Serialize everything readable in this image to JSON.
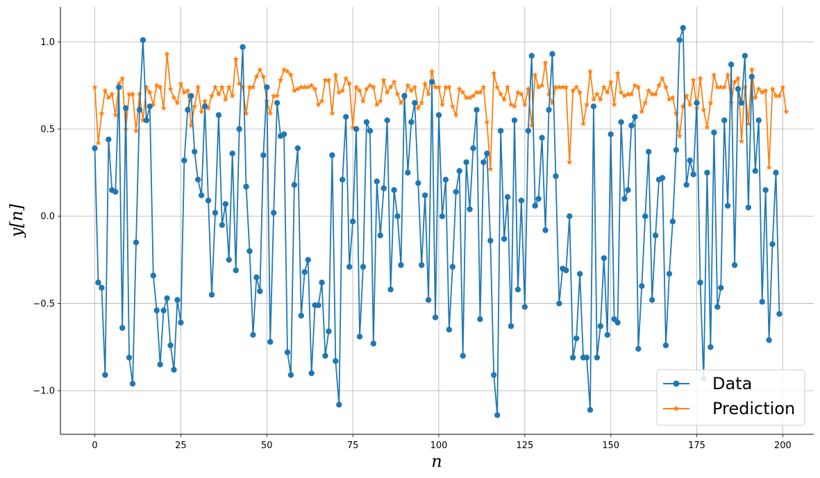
{
  "chart_data": {
    "type": "line",
    "xlabel": "n",
    "ylabel": "y[n]",
    "xlim": [
      -10,
      209
    ],
    "ylim": [
      -1.25,
      1.2
    ],
    "xticks": [
      0,
      25,
      50,
      75,
      100,
      125,
      150,
      175,
      200
    ],
    "yticks": [
      -1.0,
      -0.5,
      0.0,
      0.5,
      1.0
    ],
    "xtick_labels": [
      "0",
      "25",
      "50",
      "75",
      "100",
      "125",
      "150",
      "175",
      "200"
    ],
    "ytick_labels": [
      "−1.0",
      "−0.5",
      "0.0",
      "0.5",
      "1.0"
    ],
    "grid": true,
    "legend_position": "bottom-right",
    "colors": {
      "data": "#1f77b4",
      "prediction": "#ff7f0e",
      "grid": "#b0b0b0",
      "axis": "#000000"
    },
    "series": [
      {
        "name": "Data",
        "marker": "circle",
        "values": [
          0.39,
          -0.38,
          -0.41,
          -0.91,
          0.44,
          0.15,
          0.14,
          0.74,
          -0.64,
          0.62,
          -0.81,
          -0.96,
          -0.15,
          0.61,
          1.01,
          0.55,
          0.63,
          -0.34,
          -0.54,
          -0.85,
          -0.54,
          -0.47,
          -0.74,
          -0.88,
          -0.48,
          -0.61,
          0.32,
          0.61,
          0.69,
          0.37,
          0.21,
          0.12,
          0.63,
          0.09,
          -0.45,
          0.02,
          0.58,
          -0.05,
          0.07,
          -0.25,
          0.36,
          -0.31,
          0.5,
          0.97,
          0.17,
          -0.2,
          -0.68,
          -0.35,
          -0.43,
          0.35,
          0.74,
          -0.72,
          0.02,
          0.65,
          0.46,
          0.47,
          -0.78,
          -0.91,
          0.18,
          0.39,
          -0.57,
          -0.32,
          -0.25,
          -0.9,
          -0.51,
          -0.51,
          -0.38,
          -0.8,
          -0.66,
          0.35,
          -0.83,
          -1.08,
          0.21,
          0.57,
          -0.29,
          -0.03,
          0.5,
          -0.69,
          -0.29,
          0.54,
          0.49,
          -0.73,
          0.2,
          -0.11,
          0.16,
          0.55,
          -0.42,
          0.15,
          0.0,
          -0.28,
          0.69,
          0.25,
          0.54,
          0.65,
          0.19,
          -0.28,
          0.12,
          -0.48,
          0.77,
          -0.58,
          0.58,
          0.0,
          0.21,
          -0.65,
          -0.29,
          0.14,
          0.26,
          -0.8,
          0.31,
          0.04,
          0.39,
          0.61,
          -0.59,
          0.31,
          0.36,
          -0.14,
          -0.91,
          -1.14,
          0.49,
          -0.13,
          0.11,
          -0.63,
          0.55,
          -0.42,
          0.09,
          -0.52,
          0.49,
          0.92,
          0.06,
          0.1,
          0.45,
          -0.08,
          0.61,
          0.93,
          0.23,
          -0.5,
          -0.3,
          -0.31,
          0.0,
          -0.81,
          -0.7,
          -0.33,
          -0.81,
          -0.81,
          -1.11,
          0.63,
          -0.81,
          -0.63,
          -0.24,
          -0.68,
          0.47,
          -0.59,
          -0.61,
          0.54,
          0.1,
          0.15,
          0.52,
          0.57,
          -0.76,
          -0.4,
          0.0,
          0.37,
          -0.48,
          -0.11,
          0.21,
          0.22,
          -0.74,
          -0.33,
          -0.03,
          0.38,
          1.01,
          1.08,
          0.18,
          0.32,
          0.24,
          0.65,
          -0.38,
          -0.93,
          0.25,
          -0.75,
          0.48,
          -0.52,
          -0.41,
          0.55,
          0.06,
          0.87,
          -0.28,
          0.73,
          0.65,
          0.92,
          0.05,
          0.8,
          0.26,
          0.55,
          -0.49,
          0.15,
          -0.71,
          -0.16,
          0.25,
          -0.56
        ]
      },
      {
        "name": "Prediction",
        "marker": "star",
        "values": [
          0.74,
          0.42,
          0.59,
          0.72,
          0.68,
          0.7,
          0.58,
          0.76,
          0.79,
          0.5,
          0.7,
          0.7,
          0.49,
          0.7,
          0.55,
          0.74,
          0.71,
          0.64,
          0.75,
          0.74,
          0.62,
          0.93,
          0.73,
          0.68,
          0.65,
          0.76,
          0.71,
          0.72,
          0.52,
          0.63,
          0.74,
          0.6,
          0.66,
          0.62,
          0.69,
          0.74,
          0.7,
          0.74,
          0.67,
          0.74,
          0.69,
          0.9,
          0.76,
          0.74,
          0.59,
          0.74,
          0.74,
          0.8,
          0.84,
          0.8,
          0.66,
          0.59,
          0.69,
          0.69,
          0.78,
          0.84,
          0.83,
          0.81,
          0.72,
          0.73,
          0.74,
          0.74,
          0.74,
          0.75,
          0.73,
          0.64,
          0.66,
          0.78,
          0.78,
          0.59,
          0.81,
          0.71,
          0.72,
          0.79,
          0.76,
          0.51,
          0.74,
          0.72,
          0.66,
          0.73,
          0.75,
          0.74,
          0.64,
          0.66,
          0.78,
          0.71,
          0.74,
          0.77,
          0.7,
          0.65,
          0.68,
          0.75,
          0.72,
          0.74,
          0.62,
          0.65,
          0.76,
          0.7,
          0.83,
          0.74,
          0.74,
          0.64,
          0.74,
          0.74,
          0.63,
          0.58,
          0.73,
          0.71,
          0.68,
          0.68,
          0.69,
          0.71,
          0.71,
          0.74,
          0.54,
          0.27,
          0.82,
          0.74,
          0.7,
          0.67,
          0.74,
          0.64,
          0.63,
          0.71,
          0.7,
          0.64,
          0.73,
          0.52,
          0.81,
          0.74,
          0.75,
          0.88,
          0.7,
          0.65,
          0.74,
          0.74,
          0.74,
          0.74,
          0.31,
          0.72,
          0.74,
          0.71,
          0.53,
          0.64,
          0.83,
          0.67,
          0.7,
          0.67,
          0.74,
          0.71,
          0.77,
          0.64,
          0.82,
          0.71,
          0.69,
          0.7,
          0.7,
          0.75,
          0.74,
          0.6,
          0.65,
          0.72,
          0.7,
          0.7,
          0.75,
          0.79,
          0.74,
          0.67,
          0.68,
          0.59,
          0.46,
          0.63,
          0.69,
          0.64,
          0.78,
          0.62,
          0.79,
          0.61,
          0.51,
          0.65,
          0.81,
          0.74,
          0.74,
          0.74,
          0.81,
          0.65,
          0.77,
          0.79,
          0.43,
          0.74,
          0.53,
          0.84,
          0.68,
          0.73,
          0.71,
          0.72,
          0.28,
          0.73,
          0.69,
          0.69,
          0.74,
          0.6
        ]
      }
    ]
  }
}
